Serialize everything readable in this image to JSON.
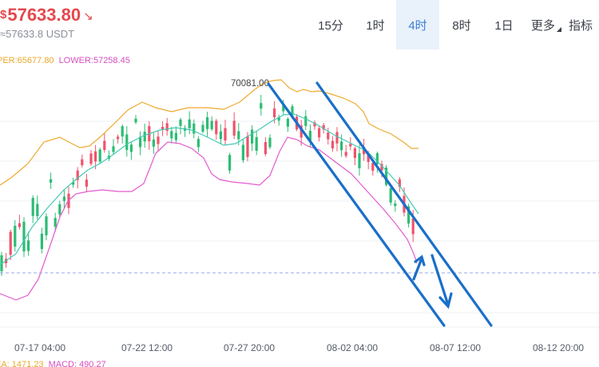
{
  "header": {
    "currency_symbol": "$",
    "price": "57633.80",
    "trend_arrow": "↘",
    "converted_price": "≈57633.8 USDT"
  },
  "timeframes": {
    "tabs": [
      {
        "label": "15分",
        "active": false
      },
      {
        "label": "1时",
        "active": false
      },
      {
        "label": "4时",
        "active": true
      },
      {
        "label": "8时",
        "active": false
      },
      {
        "label": "1日",
        "active": false
      },
      {
        "label": "更多",
        "active": false
      },
      {
        "label": "指标",
        "active": false
      }
    ]
  },
  "indicators": {
    "upper_text": "PER:65677.80",
    "lower_text": "LOWER:57258.45",
    "ema_text": "EA: 1471.23",
    "macd_text": "MACD: 490.27"
  },
  "chart_data": {
    "type": "candlestick",
    "x_tick_labels": [
      "07-17 04:00",
      "07-22 12:00",
      "07-27 20:00",
      "08-02 04:00",
      "08-07 12:00",
      "08-12 20:00"
    ],
    "high_annotation": "70081.00",
    "current_price_line": 57633.8,
    "colors": {
      "up": "#2cbc73",
      "down": "#f0536c",
      "boll_upper": "#eeaa2f",
      "boll_mid": "#43c9b4",
      "boll_lower": "#e35bcf",
      "drawing": "#1a6fc9",
      "price_line": "#9aa6ee"
    }
  }
}
